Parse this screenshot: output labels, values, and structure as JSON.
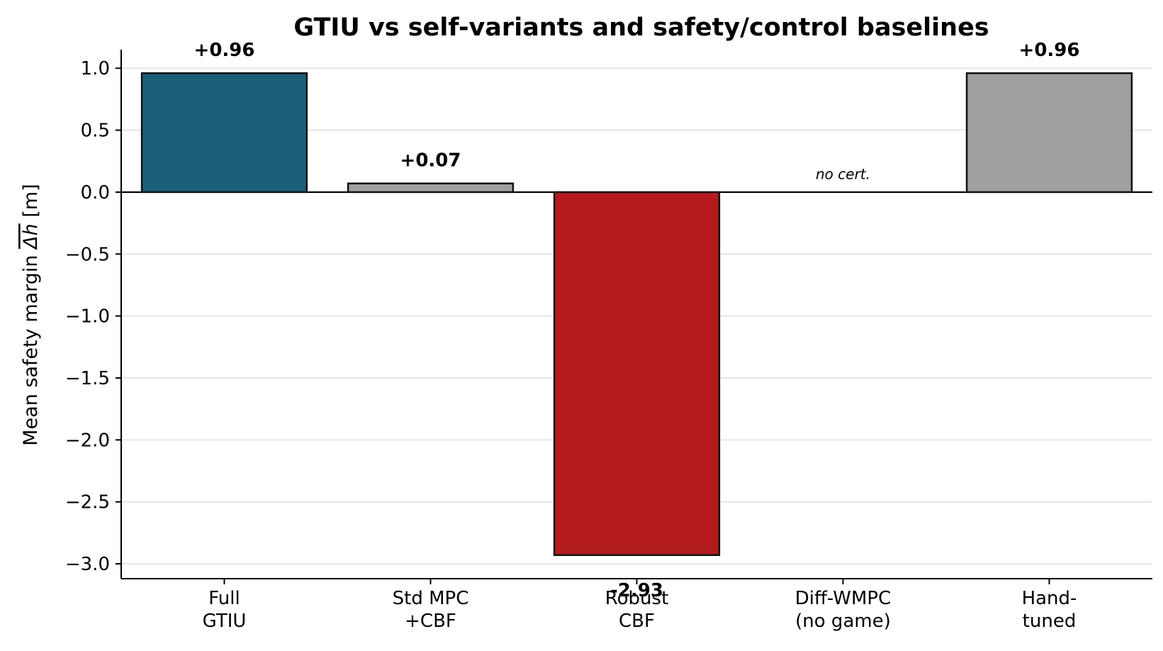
{
  "chart_data": {
    "type": "bar",
    "title": "GTIU vs self-variants and safety/control baselines",
    "ylabel": "Mean safety margin",
    "ylabel_symbol": "Δh",
    "ylabel_unit": "[m]",
    "categories": [
      [
        "Full",
        "GTIU"
      ],
      [
        "Std MPC",
        "+CBF"
      ],
      [
        "Robust",
        "CBF"
      ],
      [
        "Diff-WMPC",
        "(no game)"
      ],
      [
        "Hand-",
        "tuned"
      ]
    ],
    "values": [
      0.96,
      0.07,
      -2.93,
      null,
      0.96
    ],
    "value_labels": [
      "+0.96",
      "+0.07",
      "-2.93",
      "no cert.",
      "+0.96"
    ],
    "colors": [
      "#1c5f78",
      "#a0a0a0",
      "#b31b1e",
      "#ffffff",
      "#a0a0a0"
    ],
    "ylim": [
      -3.12,
      1.15
    ],
    "yticks": [
      1.0,
      0.5,
      0.0,
      -0.5,
      -1.0,
      -1.5,
      -2.0,
      -2.5,
      -3.0
    ],
    "ytick_labels": [
      "1.0",
      "0.5",
      "0.0",
      "−0.5",
      "−1.0",
      "−1.5",
      "−2.0",
      "−2.5",
      "−3.0"
    ],
    "grid": "horizontal",
    "zero_line": true,
    "legend": "none"
  }
}
